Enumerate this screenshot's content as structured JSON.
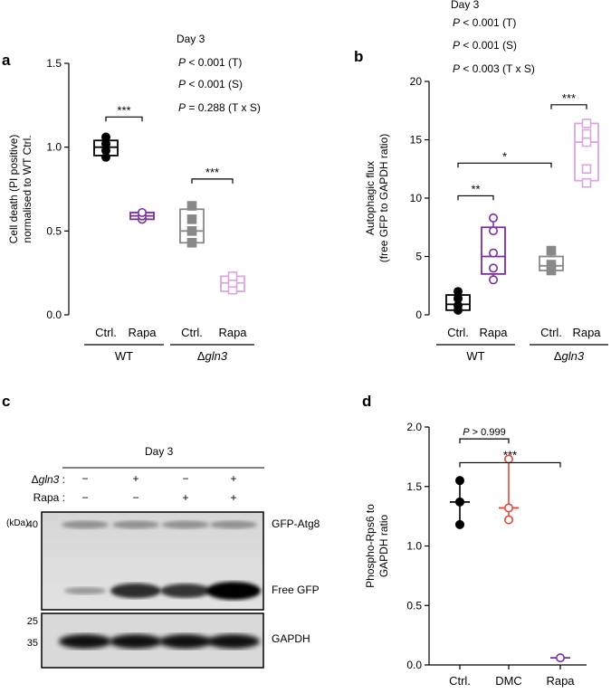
{
  "panels": {
    "a": {
      "letter": "a",
      "day": "Day 3",
      "stats": [
        "P < 0.001 (T)",
        "P < 0.001 (S)",
        "P = 0.288 (T x S)"
      ]
    },
    "b": {
      "letter": "b",
      "day": "Day 3",
      "stats": [
        "P < 0.001 (T)",
        "P < 0.001 (S)",
        "P < 0.003 (T x S)"
      ]
    },
    "c": {
      "letter": "c"
    },
    "d": {
      "letter": "d"
    }
  },
  "colors": {
    "black": "#000000",
    "purple": "#7B2D9E",
    "gray": "#888888",
    "lightpurple": "#D9A6E0",
    "red": "#E0483C"
  },
  "chart_data": [
    {
      "id": "a",
      "type": "box",
      "ylabel": "Cell death (PI positive) normalised to WT Ctrl.",
      "ylim": [
        0,
        1.5
      ],
      "yticks": [
        "0.0",
        "0.5",
        "1.0",
        "1.5"
      ],
      "categories": [
        "Ctrl.",
        "Rapa",
        "Ctrl.",
        "Rapa"
      ],
      "groups": [
        "WT",
        "Δgln3"
      ],
      "series": [
        {
          "category": "Ctrl.",
          "group": "WT",
          "color": "black",
          "marker": "circle",
          "filled": true,
          "min": 0.93,
          "q1": 0.95,
          "median": 1.0,
          "q3": 1.04,
          "max": 1.07,
          "points": [
            0.94,
            0.98,
            1.02,
            1.06
          ]
        },
        {
          "category": "Rapa",
          "group": "WT",
          "color": "purple",
          "marker": "circle",
          "filled": false,
          "min": 0.56,
          "q1": 0.57,
          "median": 0.59,
          "q3": 0.61,
          "max": 0.63,
          "points": [
            0.57,
            0.59,
            0.61
          ]
        },
        {
          "category": "Ctrl.",
          "group": "Δgln3",
          "color": "gray",
          "marker": "square",
          "filled": true,
          "min": 0.42,
          "q1": 0.43,
          "median": 0.5,
          "q3": 0.63,
          "max": 0.65,
          "points": [
            0.43,
            0.5,
            0.57,
            0.65
          ]
        },
        {
          "category": "Rapa",
          "group": "Δgln3",
          "color": "lightpurple",
          "marker": "square",
          "filled": false,
          "min": 0.14,
          "q1": 0.14,
          "median": 0.19,
          "q3": 0.23,
          "max": 0.24,
          "points": [
            0.15,
            0.19,
            0.23
          ]
        }
      ],
      "brackets": [
        {
          "from": 0,
          "to": 1,
          "y": 1.18,
          "label": "***"
        },
        {
          "from": 2,
          "to": 3,
          "y": 0.81,
          "label": "***"
        }
      ]
    },
    {
      "id": "b",
      "type": "box",
      "ylabel": "Autophagic flux (free GFP to GAPDH ratio)",
      "ylim": [
        0,
        20
      ],
      "yticks": [
        "0",
        "5",
        "10",
        "15",
        "20"
      ],
      "categories": [
        "Ctrl.",
        "Rapa",
        "Ctrl.",
        "Rapa"
      ],
      "groups": [
        "WT",
        "Δgln3"
      ],
      "series": [
        {
          "category": "Ctrl.",
          "group": "WT",
          "color": "black",
          "marker": "circle",
          "filled": true,
          "min": 0.3,
          "q1": 0.4,
          "median": 0.9,
          "q3": 1.7,
          "max": 2.0,
          "points": [
            0.4,
            0.8,
            1.4,
            2.0
          ]
        },
        {
          "category": "Rapa",
          "group": "WT",
          "color": "purple",
          "marker": "circle",
          "filled": false,
          "min": 3.0,
          "q1": 3.5,
          "median": 5.0,
          "q3": 7.5,
          "max": 8.3,
          "points": [
            3.0,
            4.0,
            5.3,
            7.2,
            8.3
          ]
        },
        {
          "category": "Ctrl.",
          "group": "Δgln3",
          "color": "gray",
          "marker": "square",
          "filled": true,
          "min": 3.8,
          "q1": 3.8,
          "median": 4.2,
          "q3": 5.0,
          "max": 5.5,
          "points": [
            3.8,
            4.3,
            5.5
          ]
        },
        {
          "category": "Rapa",
          "group": "Δgln3",
          "color": "lightpurple",
          "marker": "square",
          "filled": false,
          "min": 11.2,
          "q1": 11.5,
          "median": 14.8,
          "q3": 16.4,
          "max": 16.4,
          "points": [
            11.3,
            12.5,
            14.8,
            15.5,
            16.4
          ]
        }
      ],
      "brackets": [
        {
          "from": 0,
          "to": 1,
          "y": 10.2,
          "label": "**"
        },
        {
          "from": 0,
          "to": 2,
          "y": 13.0,
          "label": "*"
        },
        {
          "from": 2,
          "to": 3,
          "y": 18.0,
          "label": "***"
        }
      ]
    },
    {
      "id": "d",
      "type": "scatter",
      "ylabel": "Phospho-Rps6 to GAPDH ratio",
      "ylim": [
        0,
        2.0
      ],
      "yticks": [
        "0.0",
        "0.5",
        "1.0",
        "1.5",
        "2.0"
      ],
      "categories": [
        "Ctrl.",
        "DMC",
        "Rapa"
      ],
      "series": [
        {
          "category": "Ctrl.",
          "color": "black",
          "filled": true,
          "min": 1.18,
          "median": 1.37,
          "max": 1.55,
          "points": [
            1.18,
            1.37,
            1.55
          ]
        },
        {
          "category": "DMC",
          "color": "red",
          "filled": false,
          "min": 1.22,
          "median": 1.32,
          "max": 1.73,
          "points": [
            1.22,
            1.32,
            1.73
          ]
        },
        {
          "category": "Rapa",
          "color": "purple",
          "filled": false,
          "min": 0.05,
          "median": 0.06,
          "max": 0.07,
          "points": [
            0.06
          ]
        }
      ],
      "brackets": [
        {
          "from": 0,
          "to": 1,
          "y": 1.9,
          "label": "P > 0.999"
        },
        {
          "from": 0,
          "to": 2,
          "y": 1.7,
          "label": "***"
        }
      ]
    }
  ],
  "blot": {
    "title": "Day 3",
    "row_labels": [
      "Δgln3 :",
      "Rapa :"
    ],
    "conditions": [
      [
        "−",
        "+",
        "−",
        "+"
      ],
      [
        "−",
        "−",
        "+",
        "+"
      ]
    ],
    "kda_label": "(kDa)",
    "markers": [
      "40",
      "25",
      "35"
    ],
    "band_labels": [
      "GFP-Atg8",
      "Free GFP",
      "GAPDH"
    ],
    "free_gfp_intensity": [
      0.15,
      0.75,
      0.7,
      1.0
    ]
  }
}
